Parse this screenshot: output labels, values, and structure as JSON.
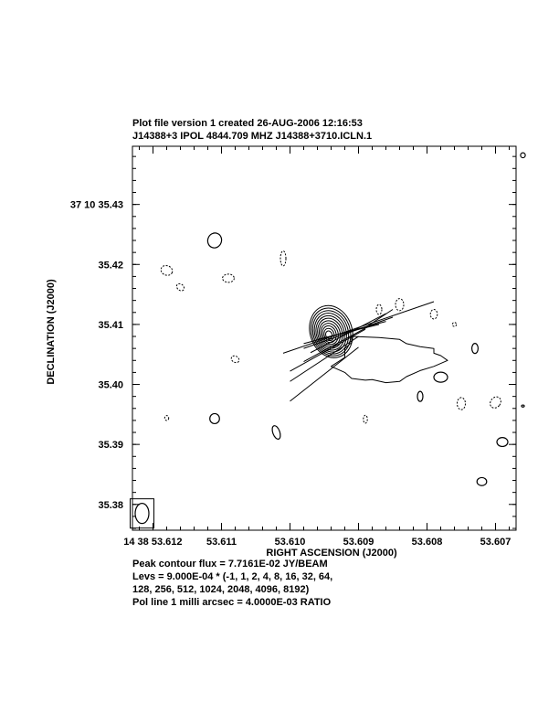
{
  "header": {
    "line1": "Plot file version 1  created 26-AUG-2006 12:16:53",
    "line2": "J14388+3  IPOL  4844.709 MHZ  J14388+3710.ICLN.1"
  },
  "footer": {
    "peak": "Peak contour flux =  7.7161E-02 JY/BEAM",
    "levs1": "Levs = 9.000E-04 * (-1, 1, 2, 4, 8, 16, 32, 64,",
    "levs2": "128, 256, 512, 1024, 2048, 4096, 8192)",
    "pol": "Pol line 1 milli arcsec =  4.0000E-03 RATIO"
  },
  "chart_data": {
    "type": "contour",
    "xlabel": "RIGHT ASCENSION (J2000)",
    "ylabel": "DECLINATION (J2000)",
    "xlim": [
      53.6123,
      53.6067
    ],
    "ylim": [
      35.3757,
      35.4397
    ],
    "x_ticks": [
      {
        "value": 53.612,
        "label": "14 38 53.612"
      },
      {
        "value": 53.611,
        "label": "53.611"
      },
      {
        "value": 53.61,
        "label": "53.610"
      },
      {
        "value": 53.609,
        "label": "53.609"
      },
      {
        "value": 53.608,
        "label": "53.608"
      },
      {
        "value": 53.607,
        "label": "53.607"
      }
    ],
    "y_ticks": [
      {
        "value": 35.43,
        "label": "37 10 35.43"
      },
      {
        "value": 35.42,
        "label": "35.42"
      },
      {
        "value": 35.41,
        "label": "35.41"
      },
      {
        "value": 35.4,
        "label": "35.40"
      },
      {
        "value": 35.39,
        "label": "35.39"
      },
      {
        "value": 35.38,
        "label": "35.38"
      }
    ],
    "core_center": {
      "ra": 53.6094,
      "dec": 35.4088
    },
    "core_levels": 11,
    "pol_lines": [
      {
        "x1": 53.6101,
        "y1": 35.4052,
        "x2": 53.6079,
        "y2": 35.4138
      },
      {
        "x1": 53.6097,
        "y1": 35.4053,
        "x2": 53.6086,
        "y2": 35.4118
      },
      {
        "x1": 53.6098,
        "y1": 35.406,
        "x2": 53.6085,
        "y2": 35.4112
      },
      {
        "x1": 53.6098,
        "y1": 35.4068,
        "x2": 53.6086,
        "y2": 35.4105
      },
      {
        "x1": 53.6096,
        "y1": 35.4075,
        "x2": 53.6087,
        "y2": 35.41
      },
      {
        "x1": 53.6098,
        "y1": 35.4038,
        "x2": 53.6088,
        "y2": 35.41
      },
      {
        "x1": 53.61,
        "y1": 35.4022,
        "x2": 53.6089,
        "y2": 35.4092
      },
      {
        "x1": 53.61,
        "y1": 35.4005,
        "x2": 53.609,
        "y2": 35.408
      },
      {
        "x1": 53.61,
        "y1": 35.3972,
        "x2": 53.609,
        "y2": 35.4062
      },
      {
        "x1": 53.6089,
        "y1": 35.4095,
        "x2": 53.6085,
        "y2": 35.4125
      }
    ],
    "extended_contour": [
      [
        53.6091,
        35.408
      ],
      [
        53.6087,
        35.4078
      ],
      [
        53.6084,
        35.4075
      ],
      [
        53.6083,
        35.4068
      ],
      [
        53.6081,
        35.4063
      ],
      [
        53.6079,
        35.406
      ],
      [
        53.6079,
        35.4052
      ],
      [
        53.6078,
        35.4048
      ],
      [
        53.6077,
        35.404
      ],
      [
        53.6079,
        35.403
      ],
      [
        53.6081,
        35.4023
      ],
      [
        53.6083,
        35.4013
      ],
      [
        53.6084,
        35.4005
      ],
      [
        53.6086,
        35.4003
      ],
      [
        53.6088,
        35.4008
      ],
      [
        53.6089,
        35.4007
      ],
      [
        53.6091,
        35.401
      ],
      [
        53.6092,
        35.402
      ],
      [
        53.6094,
        35.403
      ],
      [
        53.6092,
        35.4045
      ],
      [
        53.6092,
        35.406
      ],
      [
        53.6091,
        35.407
      ]
    ],
    "blobs": [
      {
        "ra": 53.6111,
        "dec": 35.424,
        "rx": 7.5,
        "ry": 8.2,
        "rot": 20,
        "dashed": false
      },
      {
        "ra": 53.6118,
        "dec": 35.419,
        "rx": 6.4,
        "ry": 5.2,
        "rot": 20,
        "dashed": true
      },
      {
        "ra": 53.6116,
        "dec": 35.4162,
        "rx": 4.5,
        "ry": 3.4,
        "rot": 40,
        "dashed": true
      },
      {
        "ra": 53.6109,
        "dec": 35.4177,
        "rx": 6.4,
        "ry": 4.5,
        "rot": 0,
        "dashed": true
      },
      {
        "ra": 53.6101,
        "dec": 35.421,
        "rx": 3.0,
        "ry": 8.2,
        "rot": 0,
        "dashed": true
      },
      {
        "ra": 53.6108,
        "dec": 35.4042,
        "rx": 4.5,
        "ry": 3.4,
        "rot": 30,
        "dashed": true
      },
      {
        "ra": 53.6084,
        "dec": 35.4133,
        "rx": 4.5,
        "ry": 6.6,
        "rot": 0,
        "dashed": true
      },
      {
        "ra": 53.6087,
        "dec": 35.4125,
        "rx": 3.0,
        "ry": 5.5,
        "rot": 0,
        "dashed": true
      },
      {
        "ra": 53.6079,
        "dec": 35.4117,
        "rx": 3.8,
        "ry": 5.2,
        "rot": 0,
        "dashed": true
      },
      {
        "ra": 53.6076,
        "dec": 35.41,
        "rx": 2.2,
        "ry": 2.2,
        "rot": 0,
        "dashed": true
      },
      {
        "ra": 53.607,
        "dec": 35.397,
        "rx": 5.3,
        "ry": 6.6,
        "rot": 40,
        "dashed": true
      },
      {
        "ra": 53.6073,
        "dec": 35.406,
        "rx": 3.4,
        "ry": 5.5,
        "rot": 0,
        "dashed": false
      },
      {
        "ra": 53.6081,
        "dec": 35.398,
        "rx": 3.0,
        "ry": 5.5,
        "rot": 0,
        "dashed": false
      },
      {
        "ra": 53.6078,
        "dec": 35.4012,
        "rx": 7.5,
        "ry": 5.5,
        "rot": 0,
        "dashed": false
      },
      {
        "ra": 53.6075,
        "dec": 35.3968,
        "rx": 4.5,
        "ry": 6.6,
        "rot": 0,
        "dashed": true
      },
      {
        "ra": 53.6066,
        "dec": 35.3964,
        "rx": 1.5,
        "ry": 1.1,
        "rot": 0,
        "dashed": false
      },
      {
        "ra": 53.6111,
        "dec": 35.3943,
        "rx": 5.3,
        "ry": 5.5,
        "rot": 0,
        "dashed": false
      },
      {
        "ra": 53.6102,
        "dec": 35.392,
        "rx": 3.8,
        "ry": 7.7,
        "rot": -20,
        "dashed": false
      },
      {
        "ra": 53.6089,
        "dec": 35.3942,
        "rx": 2.2,
        "ry": 4.4,
        "rot": 0,
        "dashed": true
      },
      {
        "ra": 53.6118,
        "dec": 35.3944,
        "rx": 2.2,
        "ry": 2.7,
        "rot": 0,
        "dashed": true
      },
      {
        "ra": 53.6069,
        "dec": 35.3904,
        "rx": 6.0,
        "ry": 4.9,
        "rot": 0,
        "dashed": false
      },
      {
        "ra": 53.6072,
        "dec": 35.3838,
        "rx": 5.3,
        "ry": 4.4,
        "rot": 0,
        "dashed": false
      },
      {
        "ra": 53.6066,
        "dec": 35.4382,
        "rx": 2.6,
        "ry": 2.7,
        "rot": 0,
        "dashed": false
      }
    ],
    "beam": {
      "ra": 53.6122,
      "dec": 35.3788,
      "rx": 7.5,
      "ry": 11.0
    }
  }
}
